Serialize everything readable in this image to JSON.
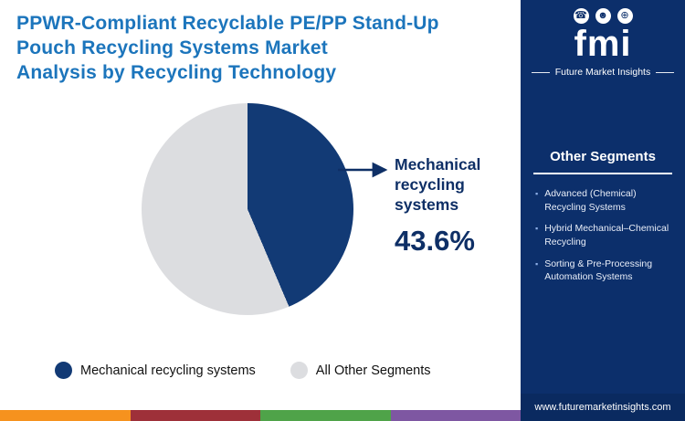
{
  "header": {
    "title_lines": [
      "PPWR-Compliant Recyclable PE/PP Stand-Up",
      "Pouch Recycling Systems Market",
      "Analysis by Recycling Technology"
    ]
  },
  "brand": {
    "logo_text": "fmi",
    "tagline": "Future Market Insights",
    "logo_icons": [
      {
        "name": "phone-icon",
        "glyph": "☎"
      },
      {
        "name": "person-icon",
        "glyph": "☻"
      },
      {
        "name": "globe-icon",
        "glyph": "⊕"
      }
    ]
  },
  "chart_data": {
    "type": "pie",
    "title": "PPWR-Compliant Recyclable PE/PP Stand-Up Pouch Recycling Systems Market Analysis by Recycling Technology",
    "slices": [
      {
        "label": "Mechanical recycling systems",
        "value": 43.6,
        "color": "#123a75"
      },
      {
        "label": "All Other Segments",
        "value": 56.4,
        "color": "#dcdde0"
      }
    ],
    "start_angle_deg": 0,
    "legend_position": "bottom",
    "annotation": {
      "label": "Mechanical recycling systems",
      "value_text": "43.6%"
    }
  },
  "legend": {
    "items": [
      {
        "label": "Mechanical recycling systems",
        "color": "#123a75"
      },
      {
        "label": "All Other Segments",
        "color": "#dcdde0"
      }
    ]
  },
  "sidebar": {
    "heading": "Other Segments",
    "bullet_glyph": "▪",
    "items": [
      "Advanced (Chemical) Recycling Systems",
      "Hybrid Mechanical–Chemical Recycling",
      "Sorting & Pre-Processing Automation Systems"
    ],
    "website": "www.futuremarketinsights.com"
  },
  "footer": {
    "stripe_colors": [
      "#f6921e",
      "#9e3039",
      "#4fa349",
      "#7e57a2"
    ]
  }
}
